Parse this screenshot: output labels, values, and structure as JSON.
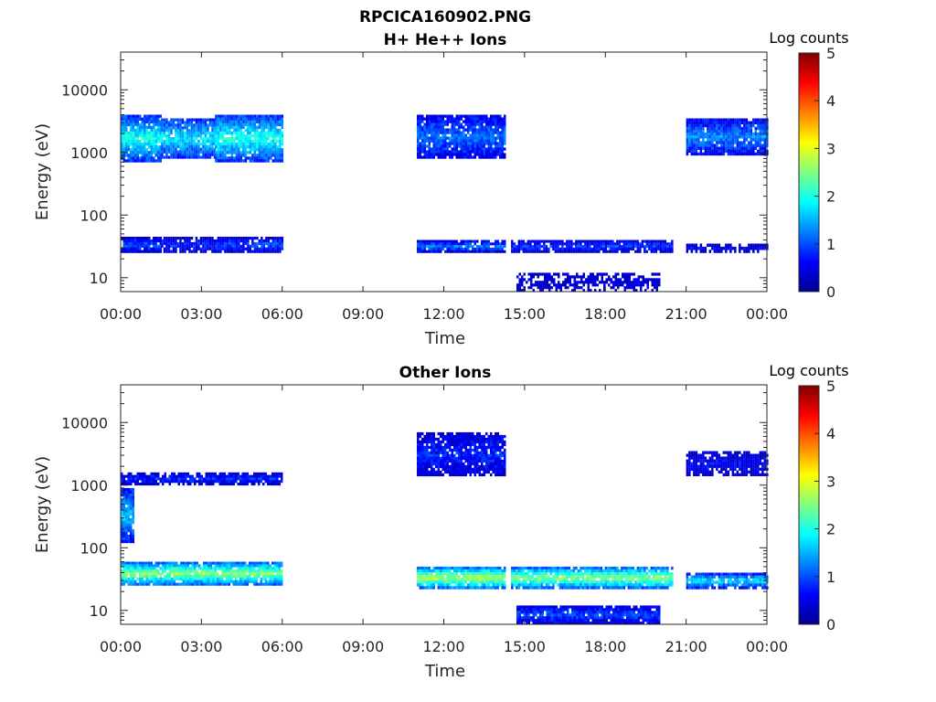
{
  "figure": {
    "title": "RPCICA160902.PNG"
  },
  "colormap": [
    "#00008f",
    "#0000ff",
    "#0080ff",
    "#00ffff",
    "#80ff80",
    "#ffff00",
    "#ff8000",
    "#ff0000",
    "#800000"
  ],
  "chart_data": [
    {
      "type": "heatmap",
      "title": "H+ He++ Ions",
      "xlabel": "Time",
      "ylabel": "Energy (eV)",
      "yscale": "log",
      "xlim": [
        "00:00",
        "24:00"
      ],
      "ylim": [
        6,
        40000
      ],
      "x_ticks": [
        "00:00",
        "03:00",
        "06:00",
        "09:00",
        "12:00",
        "15:00",
        "18:00",
        "21:00",
        "00:00"
      ],
      "y_ticks": [
        "10",
        "100",
        "1000",
        "10000"
      ],
      "colorbar": {
        "label": "Log counts",
        "range": [
          0,
          5
        ],
        "ticks": [
          "0",
          "1",
          "2",
          "3",
          "4",
          "5"
        ]
      },
      "bands": [
        {
          "t": [
            0.0,
            1.5
          ],
          "e": [
            700,
            4000
          ],
          "log_counts": 2.0
        },
        {
          "t": [
            0.0,
            1.5
          ],
          "e": [
            25,
            45
          ],
          "log_counts": 1.0
        },
        {
          "t": [
            1.5,
            3.5
          ],
          "e": [
            800,
            3500
          ],
          "log_counts": 1.8
        },
        {
          "t": [
            1.5,
            3.5
          ],
          "e": [
            25,
            45
          ],
          "log_counts": 0.8
        },
        {
          "t": [
            3.5,
            6.0
          ],
          "e": [
            700,
            4000
          ],
          "log_counts": 2.0
        },
        {
          "t": [
            3.5,
            6.0
          ],
          "e": [
            25,
            45
          ],
          "log_counts": 1.0
        },
        {
          "t": [
            11.0,
            14.3
          ],
          "e": [
            800,
            4000
          ],
          "log_counts": 1.2
        },
        {
          "t": [
            11.0,
            14.3
          ],
          "e": [
            25,
            40
          ],
          "log_counts": 1.2
        },
        {
          "t": [
            14.5,
            20.5
          ],
          "e": [
            25,
            40
          ],
          "log_counts": 0.9
        },
        {
          "t": [
            14.7,
            20.0
          ],
          "e": [
            6,
            12
          ],
          "log_counts": 0.4
        },
        {
          "t": [
            21.0,
            24.0
          ],
          "e": [
            900,
            3500
          ],
          "log_counts": 1.3
        },
        {
          "t": [
            21.0,
            24.0
          ],
          "e": [
            25,
            35
          ],
          "log_counts": 0.5
        }
      ]
    },
    {
      "type": "heatmap",
      "title": "Other Ions",
      "xlabel": "Time",
      "ylabel": "Energy (eV)",
      "yscale": "log",
      "xlim": [
        "00:00",
        "24:00"
      ],
      "ylim": [
        6,
        40000
      ],
      "x_ticks": [
        "00:00",
        "03:00",
        "06:00",
        "09:00",
        "12:00",
        "15:00",
        "18:00",
        "21:00",
        "00:00"
      ],
      "y_ticks": [
        "10",
        "100",
        "1000",
        "10000"
      ],
      "colorbar": {
        "label": "Log counts",
        "range": [
          0,
          5
        ],
        "ticks": [
          "0",
          "1",
          "2",
          "3",
          "4",
          "5"
        ]
      },
      "bands": [
        {
          "t": [
            0.0,
            6.0
          ],
          "e": [
            1000,
            1600
          ],
          "log_counts": 0.8
        },
        {
          "t": [
            0.0,
            6.0
          ],
          "e": [
            25,
            60
          ],
          "log_counts": 2.6
        },
        {
          "t": [
            0.0,
            0.5
          ],
          "e": [
            120,
            900
          ],
          "log_counts": 1.6
        },
        {
          "t": [
            11.0,
            14.3
          ],
          "e": [
            1400,
            7000
          ],
          "log_counts": 0.8
        },
        {
          "t": [
            11.0,
            14.3
          ],
          "e": [
            22,
            50
          ],
          "log_counts": 2.8
        },
        {
          "t": [
            14.5,
            20.5
          ],
          "e": [
            22,
            50
          ],
          "log_counts": 2.6
        },
        {
          "t": [
            14.7,
            20.0
          ],
          "e": [
            6,
            12
          ],
          "log_counts": 1.0
        },
        {
          "t": [
            21.0,
            24.0
          ],
          "e": [
            1400,
            3500
          ],
          "log_counts": 0.6
        },
        {
          "t": [
            21.0,
            24.0
          ],
          "e": [
            22,
            40
          ],
          "log_counts": 1.8
        }
      ]
    }
  ]
}
